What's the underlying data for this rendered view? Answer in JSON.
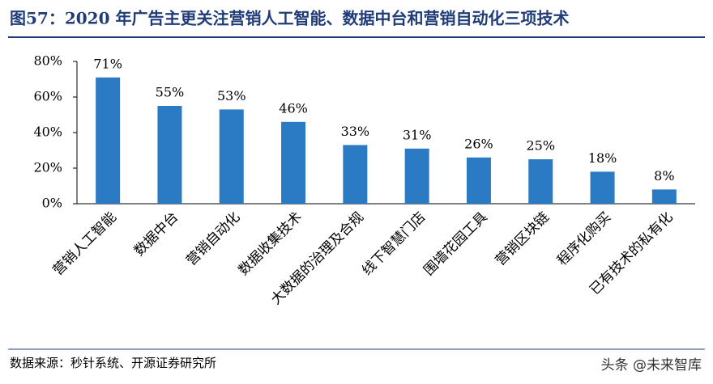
{
  "chart_data": {
    "type": "bar",
    "title": "图57：2020 年广告主更关注营销人工智能、数据中台和营销自动化三项技术",
    "categories": [
      "营销人工智能",
      "数据中台",
      "营销自动化",
      "数据收集技术",
      "大数据的治理及合规",
      "线下智慧门店",
      "围墙花园工具",
      "营销区块链",
      "程序化购买",
      "已有技术的私有化"
    ],
    "values": [
      71,
      55,
      53,
      46,
      33,
      31,
      26,
      25,
      18,
      8
    ],
    "value_labels": [
      "71%",
      "55%",
      "53%",
      "46%",
      "33%",
      "31%",
      "26%",
      "25%",
      "18%",
      "8%"
    ],
    "color": "#2b7ac4",
    "ylim": [
      0,
      80
    ],
    "yticks": [
      {
        "value": 0,
        "label": "0%"
      },
      {
        "value": 20,
        "label": "20%"
      },
      {
        "value": 40,
        "label": "40%"
      },
      {
        "value": 60,
        "label": "60%"
      },
      {
        "value": 80,
        "label": "80%"
      }
    ],
    "grid": false,
    "source": "数据来源：秒针系统、开源证券研究所",
    "watermark": "头条 @未来智库"
  }
}
